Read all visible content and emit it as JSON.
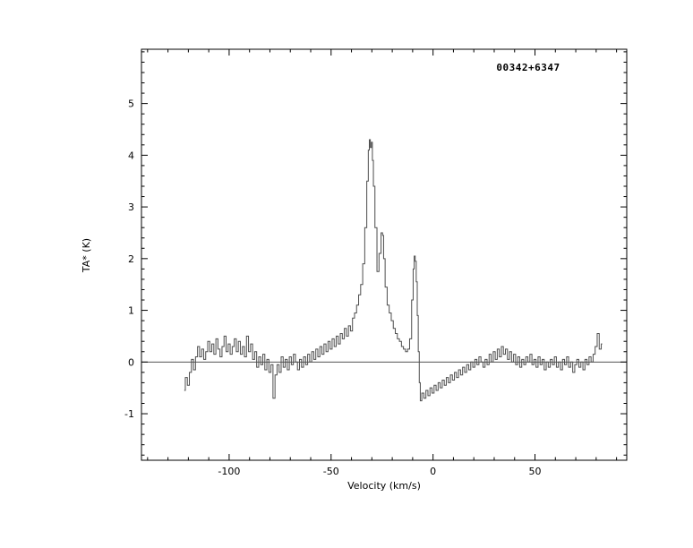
{
  "figure": {
    "background": "#ffffff",
    "frame_color": "#000000",
    "line_color": "#4d4d4d",
    "zero_line_color": "#3a3a3a"
  },
  "chart_data": {
    "type": "line",
    "title": "00342+6347",
    "xlabel": "Velocity (km/s)",
    "ylabel": "TA* (K)",
    "xlim": [
      -143,
      95
    ],
    "ylim": [
      -1.9,
      6.05
    ],
    "x_major_ticks": [
      -100,
      -50,
      0,
      50
    ],
    "x_minor_step": 10,
    "y_major_ticks": [
      -1,
      0,
      1,
      2,
      3,
      4,
      5
    ],
    "y_minor_step": 0.2,
    "grid": false,
    "legend_position": "none",
    "zero_line": true,
    "series": [
      {
        "name": "spectrum",
        "points": [
          [
            -122,
            -0.55
          ],
          [
            -121,
            -0.3
          ],
          [
            -120,
            -0.45
          ],
          [
            -119,
            -0.2
          ],
          [
            -118,
            0.05
          ],
          [
            -117,
            -0.15
          ],
          [
            -116,
            0.1
          ],
          [
            -115,
            0.3
          ],
          [
            -114,
            0.1
          ],
          [
            -113,
            0.25
          ],
          [
            -112,
            0.05
          ],
          [
            -111,
            0.2
          ],
          [
            -110,
            0.4
          ],
          [
            -109,
            0.2
          ],
          [
            -108,
            0.35
          ],
          [
            -107,
            0.15
          ],
          [
            -106,
            0.45
          ],
          [
            -105,
            0.25
          ],
          [
            -104,
            0.1
          ],
          [
            -103,
            0.3
          ],
          [
            -102,
            0.5
          ],
          [
            -101,
            0.2
          ],
          [
            -100,
            0.35
          ],
          [
            -99,
            0.15
          ],
          [
            -98,
            0.3
          ],
          [
            -97,
            0.45
          ],
          [
            -96,
            0.2
          ],
          [
            -95,
            0.4
          ],
          [
            -94,
            0.15
          ],
          [
            -93,
            0.3
          ],
          [
            -92,
            0.1
          ],
          [
            -91,
            0.5
          ],
          [
            -90,
            0.2
          ],
          [
            -89,
            0.35
          ],
          [
            -88,
            0.05
          ],
          [
            -87,
            0.2
          ],
          [
            -86,
            -0.1
          ],
          [
            -85,
            0.1
          ],
          [
            -84,
            -0.05
          ],
          [
            -83,
            0.15
          ],
          [
            -82,
            -0.15
          ],
          [
            -81,
            0.05
          ],
          [
            -80,
            -0.2
          ],
          [
            -79,
            -0.05
          ],
          [
            -78,
            -0.7
          ],
          [
            -77,
            -0.25
          ],
          [
            -76,
            -0.05
          ],
          [
            -75,
            -0.2
          ],
          [
            -74,
            0.1
          ],
          [
            -73,
            -0.1
          ],
          [
            -72,
            0.05
          ],
          [
            -71,
            -0.15
          ],
          [
            -70,
            0.1
          ],
          [
            -69,
            -0.05
          ],
          [
            -68,
            0.15
          ],
          [
            -67,
            0
          ],
          [
            -66,
            -0.15
          ],
          [
            -65,
            0.05
          ],
          [
            -64,
            -0.1
          ],
          [
            -63,
            0.1
          ],
          [
            -62,
            -0.05
          ],
          [
            -61,
            0.15
          ],
          [
            -60,
            0
          ],
          [
            -59,
            0.2
          ],
          [
            -58,
            0.05
          ],
          [
            -57,
            0.25
          ],
          [
            -56,
            0.1
          ],
          [
            -55,
            0.3
          ],
          [
            -54,
            0.15
          ],
          [
            -53,
            0.35
          ],
          [
            -52,
            0.2
          ],
          [
            -51,
            0.4
          ],
          [
            -50,
            0.25
          ],
          [
            -49,
            0.45
          ],
          [
            -48,
            0.3
          ],
          [
            -47,
            0.5
          ],
          [
            -46,
            0.35
          ],
          [
            -45,
            0.55
          ],
          [
            -44,
            0.45
          ],
          [
            -43,
            0.65
          ],
          [
            -42,
            0.5
          ],
          [
            -41,
            0.7
          ],
          [
            -40,
            0.6
          ],
          [
            -39,
            0.85
          ],
          [
            -38,
            0.95
          ],
          [
            -37,
            1.1
          ],
          [
            -36,
            1.3
          ],
          [
            -35,
            1.5
          ],
          [
            -34,
            1.9
          ],
          [
            -33,
            2.6
          ],
          [
            -32,
            3.5
          ],
          [
            -31.5,
            4.1
          ],
          [
            -31,
            4.3
          ],
          [
            -30.5,
            4.15
          ],
          [
            -30,
            4.25
          ],
          [
            -29.5,
            3.9
          ],
          [
            -29,
            3.4
          ],
          [
            -28,
            2.6
          ],
          [
            -27,
            1.75
          ],
          [
            -26,
            2.1
          ],
          [
            -25,
            2.5
          ],
          [
            -24.5,
            2.45
          ],
          [
            -24,
            2.0
          ],
          [
            -23,
            1.45
          ],
          [
            -22,
            1.1
          ],
          [
            -21,
            0.95
          ],
          [
            -20,
            0.8
          ],
          [
            -19,
            0.65
          ],
          [
            -18,
            0.55
          ],
          [
            -17,
            0.45
          ],
          [
            -16,
            0.4
          ],
          [
            -15,
            0.3
          ],
          [
            -14,
            0.25
          ],
          [
            -13,
            0.2
          ],
          [
            -12,
            0.25
          ],
          [
            -11,
            0.45
          ],
          [
            -10,
            1.2
          ],
          [
            -9.5,
            1.8
          ],
          [
            -9,
            2.05
          ],
          [
            -8.5,
            1.95
          ],
          [
            -8,
            1.55
          ],
          [
            -7.5,
            0.9
          ],
          [
            -7,
            0.2
          ],
          [
            -6.5,
            -0.4
          ],
          [
            -6,
            -0.75
          ],
          [
            -5,
            -0.6
          ],
          [
            -4,
            -0.7
          ],
          [
            -3,
            -0.55
          ],
          [
            -2,
            -0.65
          ],
          [
            -1,
            -0.5
          ],
          [
            0,
            -0.6
          ],
          [
            1,
            -0.45
          ],
          [
            2,
            -0.55
          ],
          [
            3,
            -0.4
          ],
          [
            4,
            -0.5
          ],
          [
            5,
            -0.35
          ],
          [
            6,
            -0.45
          ],
          [
            7,
            -0.3
          ],
          [
            8,
            -0.4
          ],
          [
            9,
            -0.25
          ],
          [
            10,
            -0.35
          ],
          [
            11,
            -0.2
          ],
          [
            12,
            -0.3
          ],
          [
            13,
            -0.15
          ],
          [
            14,
            -0.25
          ],
          [
            15,
            -0.1
          ],
          [
            16,
            -0.2
          ],
          [
            17,
            -0.05
          ],
          [
            18,
            -0.15
          ],
          [
            19,
            0
          ],
          [
            20,
            -0.1
          ],
          [
            21,
            0.05
          ],
          [
            22,
            -0.05
          ],
          [
            23,
            0.1
          ],
          [
            24,
            0
          ],
          [
            25,
            -0.1
          ],
          [
            26,
            0.05
          ],
          [
            27,
            -0.05
          ],
          [
            28,
            0.15
          ],
          [
            29,
            0
          ],
          [
            30,
            0.2
          ],
          [
            31,
            0.05
          ],
          [
            32,
            0.25
          ],
          [
            33,
            0.1
          ],
          [
            34,
            0.3
          ],
          [
            35,
            0.15
          ],
          [
            36,
            0.25
          ],
          [
            37,
            0.05
          ],
          [
            38,
            0.2
          ],
          [
            39,
            0
          ],
          [
            40,
            0.15
          ],
          [
            41,
            -0.05
          ],
          [
            42,
            0.1
          ],
          [
            43,
            -0.1
          ],
          [
            44,
            0.05
          ],
          [
            45,
            -0.05
          ],
          [
            46,
            0.1
          ],
          [
            47,
            0
          ],
          [
            48,
            0.15
          ],
          [
            49,
            -0.05
          ],
          [
            50,
            0.05
          ],
          [
            51,
            -0.1
          ],
          [
            52,
            0.1
          ],
          [
            53,
            -0.05
          ],
          [
            54,
            0.05
          ],
          [
            55,
            -0.15
          ],
          [
            56,
            0
          ],
          [
            57,
            -0.1
          ],
          [
            58,
            0.05
          ],
          [
            59,
            -0.05
          ],
          [
            60,
            0.1
          ],
          [
            61,
            -0.1
          ],
          [
            62,
            0
          ],
          [
            63,
            -0.15
          ],
          [
            64,
            0.05
          ],
          [
            65,
            -0.05
          ],
          [
            66,
            0.1
          ],
          [
            67,
            -0.1
          ],
          [
            68,
            0
          ],
          [
            69,
            -0.2
          ],
          [
            70,
            -0.05
          ],
          [
            71,
            0.05
          ],
          [
            72,
            -0.1
          ],
          [
            73,
            0
          ],
          [
            74,
            -0.15
          ],
          [
            75,
            0.05
          ],
          [
            76,
            -0.05
          ],
          [
            77,
            0.1
          ],
          [
            78,
            0
          ],
          [
            79,
            0.15
          ],
          [
            80,
            0.3
          ],
          [
            81,
            0.55
          ],
          [
            82,
            0.25
          ],
          [
            83,
            0.35
          ]
        ]
      }
    ]
  }
}
